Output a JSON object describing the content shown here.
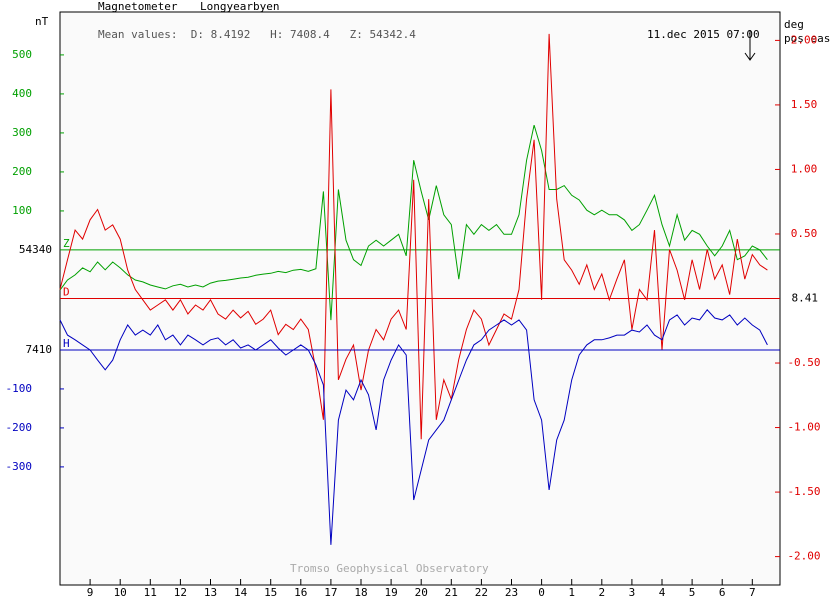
{
  "chart_data": {
    "type": "line",
    "title": "Magnetometer",
    "subtitle": "Longyearbyen",
    "annotation": "Mean values:  D: 8.4192   H: 7408.4   Z: 54342.4",
    "timestamp": "11.dec 2015 07:00",
    "credit": "Tromso Geophysical Observatory",
    "ylabel": "nT",
    "y2label": "deg",
    "y2sublabel": "pos east",
    "xlim": [
      8,
      31.92
    ],
    "xticks": [
      9,
      10,
      11,
      12,
      13,
      14,
      15,
      16,
      17,
      18,
      19,
      20,
      21,
      22,
      23,
      {
        "value": 24,
        "label": "0"
      },
      {
        "value": 25,
        "label": "1"
      },
      {
        "value": 26,
        "label": "2"
      },
      {
        "value": 27,
        "label": "3"
      },
      {
        "value": 28,
        "label": "4"
      },
      {
        "value": 29,
        "label": "5"
      },
      {
        "value": 30,
        "label": "6"
      },
      {
        "value": 31,
        "label": "7"
      }
    ],
    "ylim": [
      -859,
      610
    ],
    "yticks": [
      100,
      200,
      300,
      400,
      500
    ],
    "y3lim": [
      -603,
      867
    ],
    "y3ticks": [
      -100,
      -200,
      -300
    ],
    "y2lim": [
      -2.22,
      2.22
    ],
    "y2ticks": [
      {
        "value": 2,
        "label": "2.00"
      },
      {
        "value": 1.5,
        "label": "1.50"
      },
      {
        "value": 1,
        "label": "1.00"
      },
      {
        "value": 0.5,
        "label": "0.50"
      },
      {
        "value": -0.5,
        "label": "-0.50"
      },
      {
        "value": -1,
        "label": "-1.00"
      },
      {
        "value": -1.5,
        "label": "-1.50"
      },
      {
        "value": -2,
        "label": "-2.00"
      }
    ],
    "x": [
      8,
      8.25,
      8.5,
      8.75,
      9,
      9.25,
      9.5,
      9.75,
      10,
      10.25,
      10.5,
      10.75,
      11,
      11.25,
      11.5,
      11.75,
      12,
      12.25,
      12.5,
      12.75,
      13,
      13.25,
      13.5,
      13.75,
      14,
      14.25,
      14.5,
      14.75,
      15,
      15.25,
      15.5,
      15.75,
      16,
      16.25,
      16.5,
      16.75,
      17,
      17.25,
      17.5,
      17.75,
      18,
      18.25,
      18.5,
      18.75,
      19,
      19.25,
      19.5,
      19.75,
      20,
      20.25,
      20.5,
      20.75,
      21,
      21.25,
      21.5,
      21.75,
      22,
      22.25,
      22.5,
      22.75,
      23,
      23.25,
      23.5,
      23.75,
      24,
      24.25,
      24.5,
      24.75,
      25,
      25.25,
      25.5,
      25.75,
      26,
      26.25,
      26.5,
      26.75,
      27,
      27.25,
      27.5,
      27.75,
      28,
      28.25,
      28.5,
      28.75,
      29,
      29.25,
      29.5,
      29.75,
      30,
      30.25,
      30.5,
      30.75,
      31,
      31.25,
      31.5
    ],
    "series": [
      {
        "name": "Z",
        "color": "#00a000",
        "axis": "y",
        "reference": 54340,
        "values": [
          -103,
          -77,
          -64,
          -46,
          -56,
          -31,
          -51,
          -31,
          -46,
          -64,
          -77,
          -82,
          -90,
          -95,
          -100,
          -92,
          -88,
          -95,
          -90,
          -95,
          -85,
          -80,
          -78,
          -75,
          -72,
          -70,
          -65,
          -62,
          -60,
          -55,
          -58,
          -52,
          -50,
          -55,
          -48,
          150,
          -180,
          155,
          25,
          -25,
          -40,
          10,
          25,
          10,
          25,
          40,
          -15,
          230,
          150,
          77,
          165,
          90,
          65,
          -75,
          65,
          40,
          65,
          50,
          65,
          40,
          40,
          90,
          230,
          320,
          255,
          155,
          155,
          165,
          140,
          128,
          102,
          90,
          102,
          90,
          90,
          77,
          50,
          65,
          102,
          140,
          65,
          10,
          90,
          25,
          50,
          40,
          10,
          -15,
          10,
          50,
          -25,
          -15,
          10,
          0,
          -25
        ]
      },
      {
        "name": "D",
        "color": "#e00000",
        "axis": "y2",
        "reference": 8.41,
        "values": [
          0.07,
          0.3,
          0.53,
          0.46,
          0.61,
          0.69,
          0.53,
          0.57,
          0.46,
          0.22,
          0.07,
          -0.01,
          -0.09,
          -0.05,
          -0.01,
          -0.09,
          -0.01,
          -0.12,
          -0.05,
          -0.09,
          -0.01,
          -0.12,
          -0.16,
          -0.09,
          -0.15,
          -0.1,
          -0.2,
          -0.16,
          -0.09,
          -0.28,
          -0.2,
          -0.24,
          -0.16,
          -0.24,
          -0.55,
          -0.94,
          1.62,
          -0.63,
          -0.47,
          -0.36,
          -0.71,
          -0.4,
          -0.24,
          -0.32,
          -0.16,
          -0.09,
          -0.24,
          0.92,
          -1.09,
          0.77,
          -0.94,
          -0.63,
          -0.78,
          -0.47,
          -0.24,
          -0.09,
          -0.16,
          -0.36,
          -0.24,
          -0.12,
          -0.16,
          0.07,
          0.77,
          1.23,
          -0.01,
          2.05,
          0.77,
          0.3,
          0.22,
          0.11,
          0.26,
          0.07,
          0.19,
          -0.01,
          0.15,
          0.3,
          -0.24,
          0.07,
          -0.01,
          0.53,
          -0.4,
          0.38,
          0.22,
          -0.01,
          0.3,
          0.07,
          0.38,
          0.15,
          0.26,
          0.03,
          0.46,
          0.15,
          0.34,
          0.26,
          0.22
        ]
      },
      {
        "name": "H",
        "color": "#0000c0",
        "axis": "y3",
        "reference": 7410,
        "values": [
          77,
          38,
          26,
          13,
          0,
          -26,
          -51,
          -26,
          26,
          64,
          38,
          51,
          38,
          64,
          26,
          38,
          13,
          38,
          26,
          13,
          26,
          31,
          13,
          26,
          5,
          13,
          0,
          13,
          26,
          5,
          -13,
          0,
          13,
          0,
          -38,
          -90,
          -500,
          -180,
          -103,
          -128,
          -77,
          -115,
          -205,
          -77,
          -26,
          13,
          -13,
          -385,
          -308,
          -231,
          -205,
          -180,
          -128,
          -77,
          -26,
          13,
          26,
          51,
          64,
          77,
          64,
          77,
          51,
          -128,
          -180,
          -359,
          -231,
          -180,
          -77,
          -13,
          13,
          26,
          26,
          31,
          38,
          38,
          51,
          46,
          64,
          38,
          26,
          77,
          90,
          64,
          82,
          77,
          103,
          82,
          77,
          90,
          64,
          82,
          64,
          51,
          13
        ]
      }
    ]
  }
}
